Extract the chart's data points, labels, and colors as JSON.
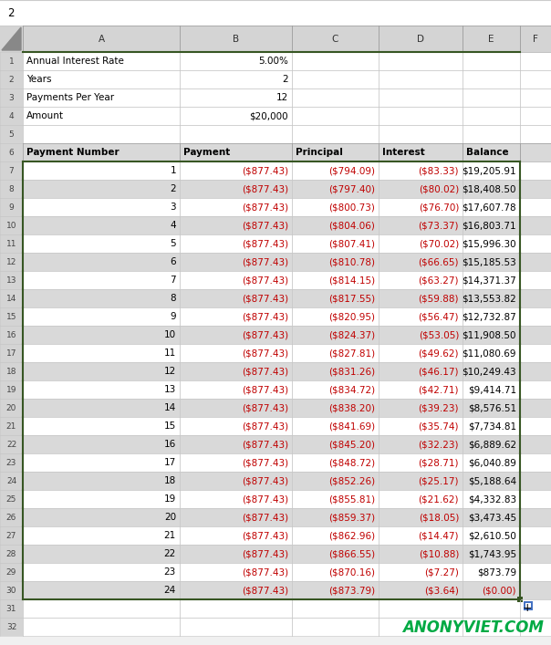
{
  "title_bar": "2",
  "col_headers": [
    "A",
    "B",
    "C",
    "D",
    "E",
    "F"
  ],
  "info_rows": [
    [
      1,
      "Annual Interest Rate",
      "5.00%"
    ],
    [
      2,
      "Years",
      "2"
    ],
    [
      3,
      "Payments Per Year",
      "12"
    ],
    [
      4,
      "Amount",
      "$20,000"
    ]
  ],
  "header_row_cols": [
    "Payment Number",
    "Payment",
    "Principal",
    "Interest",
    "Balance"
  ],
  "data_rows": [
    [
      1,
      "($877.43)",
      "($794.09)",
      "($83.33)",
      "$19,205.91"
    ],
    [
      2,
      "($877.43)",
      "($797.40)",
      "($80.02)",
      "$18,408.50"
    ],
    [
      3,
      "($877.43)",
      "($800.73)",
      "($76.70)",
      "$17,607.78"
    ],
    [
      4,
      "($877.43)",
      "($804.06)",
      "($73.37)",
      "$16,803.71"
    ],
    [
      5,
      "($877.43)",
      "($807.41)",
      "($70.02)",
      "$15,996.30"
    ],
    [
      6,
      "($877.43)",
      "($810.78)",
      "($66.65)",
      "$15,185.53"
    ],
    [
      7,
      "($877.43)",
      "($814.15)",
      "($63.27)",
      "$14,371.37"
    ],
    [
      8,
      "($877.43)",
      "($817.55)",
      "($59.88)",
      "$13,553.82"
    ],
    [
      9,
      "($877.43)",
      "($820.95)",
      "($56.47)",
      "$12,732.87"
    ],
    [
      10,
      "($877.43)",
      "($824.37)",
      "($53.05)",
      "$11,908.50"
    ],
    [
      11,
      "($877.43)",
      "($827.81)",
      "($49.62)",
      "$11,080.69"
    ],
    [
      12,
      "($877.43)",
      "($831.26)",
      "($46.17)",
      "$10,249.43"
    ],
    [
      13,
      "($877.43)",
      "($834.72)",
      "($42.71)",
      "$9,414.71"
    ],
    [
      14,
      "($877.43)",
      "($838.20)",
      "($39.23)",
      "$8,576.51"
    ],
    [
      15,
      "($877.43)",
      "($841.69)",
      "($35.74)",
      "$7,734.81"
    ],
    [
      16,
      "($877.43)",
      "($845.20)",
      "($32.23)",
      "$6,889.62"
    ],
    [
      17,
      "($877.43)",
      "($848.72)",
      "($28.71)",
      "$6,040.89"
    ],
    [
      18,
      "($877.43)",
      "($852.26)",
      "($25.17)",
      "$5,188.64"
    ],
    [
      19,
      "($877.43)",
      "($855.81)",
      "($21.62)",
      "$4,332.83"
    ],
    [
      20,
      "($877.43)",
      "($859.37)",
      "($18.05)",
      "$3,473.45"
    ],
    [
      21,
      "($877.43)",
      "($862.96)",
      "($14.47)",
      "$2,610.50"
    ],
    [
      22,
      "($877.43)",
      "($866.55)",
      "($10.88)",
      "$1,743.95"
    ],
    [
      23,
      "($877.43)",
      "($870.16)",
      "($7.27)",
      "$873.79"
    ],
    [
      24,
      "($877.43)",
      "($873.79)",
      "($3.64)",
      "($0.00)"
    ]
  ],
  "watermark": "ANONYVIET.COM",
  "bg_color": "#f0f0f0",
  "title_bg": "#ffffff",
  "col_hdr_bg": "#d4d4d4",
  "row_num_bg": "#d4d4d4",
  "white_row_bg": "#ffffff",
  "gray_row_bg": "#d9d9d9",
  "header6_bg": "#d9d9d9",
  "green_border": "#375623",
  "red_text": "#c00000",
  "black_text": "#000000",
  "grid_light": "#c8c8c8",
  "grid_dark": "#a0a0a0"
}
